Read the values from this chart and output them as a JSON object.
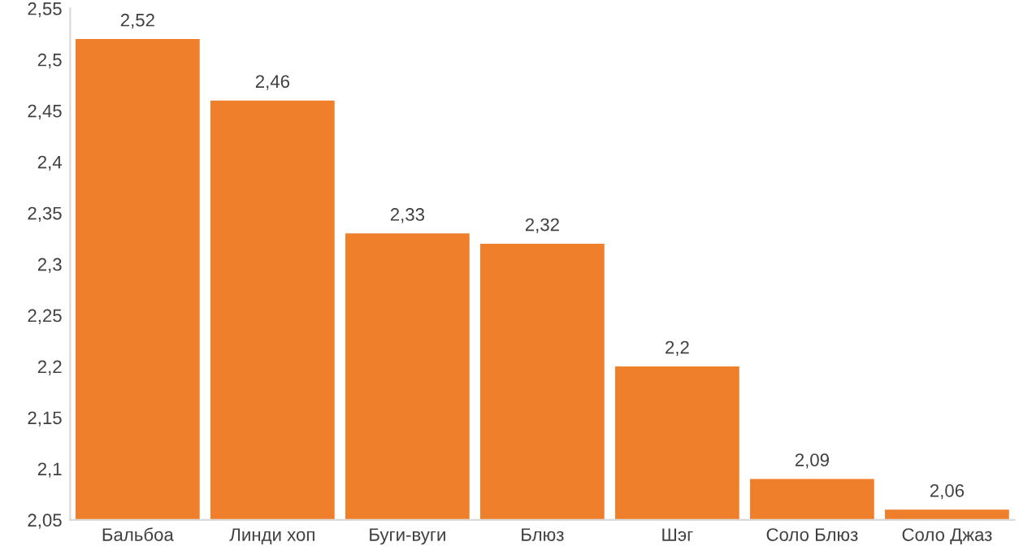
{
  "chart_data": {
    "type": "bar",
    "categories": [
      "Бальбоа",
      "Линди хоп",
      "Буги-вуги",
      "Блюз",
      "Шэг",
      "Соло Блюз",
      "Соло Джаз"
    ],
    "values": [
      2.52,
      2.46,
      2.33,
      2.32,
      2.2,
      2.09,
      2.06
    ],
    "value_labels": [
      "2,52",
      "2,46",
      "2,33",
      "2,32",
      "2,2",
      "2,09",
      "2,06"
    ],
    "color": "#f07f2c",
    "ylim": [
      2.05,
      2.55
    ],
    "yticks": [
      {
        "value": 2.05,
        "label": "2,05"
      },
      {
        "value": 2.1,
        "label": "2,1"
      },
      {
        "value": 2.15,
        "label": "2,15"
      },
      {
        "value": 2.2,
        "label": "2,2"
      },
      {
        "value": 2.25,
        "label": "2,25"
      },
      {
        "value": 2.3,
        "label": "2,3"
      },
      {
        "value": 2.35,
        "label": "2,35"
      },
      {
        "value": 2.4,
        "label": "2,4"
      },
      {
        "value": 2.45,
        "label": "2,45"
      },
      {
        "value": 2.5,
        "label": "2,5"
      },
      {
        "value": 2.55,
        "label": "2,55"
      }
    ],
    "grid": false,
    "legend": false
  }
}
